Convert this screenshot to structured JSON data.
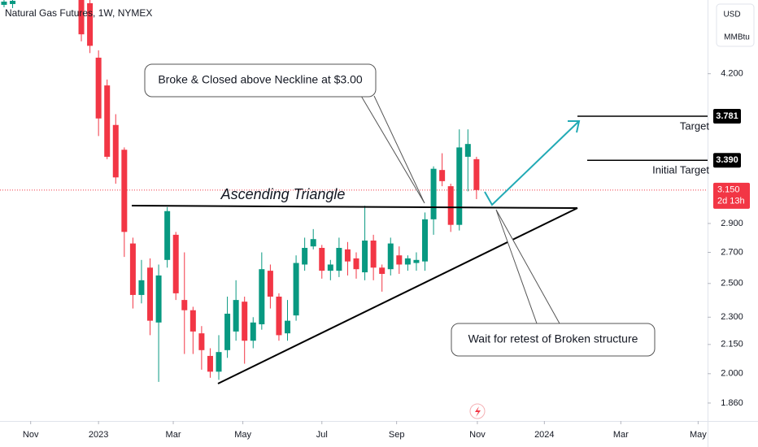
{
  "title": "Natural Gas Futures, 1W, NYMEX",
  "currency": "USD",
  "unit": "MMBtu",
  "annotations": {
    "neckline": "Broke & Closed above Neckline at $3.00",
    "pattern": "Ascending Triangle",
    "retest": "Wait for retest of Broken structure"
  },
  "chart_data": {
    "type": "candlestick",
    "log_scale": true,
    "up_color": "#089981",
    "down_color": "#f23645",
    "x": [
      0,
      1,
      9,
      10,
      11,
      12,
      13,
      14,
      15,
      16,
      17,
      18,
      19,
      20,
      21,
      22,
      23,
      24,
      25,
      26,
      27,
      28,
      29,
      30,
      31,
      32,
      33,
      34,
      35,
      36,
      37,
      38,
      39,
      40,
      41,
      42,
      43,
      44,
      45,
      46,
      47,
      48,
      49,
      50,
      51,
      52,
      53,
      54,
      55
    ],
    "open": [
      4.98,
      4.99,
      5.3,
      5.0,
      4.37,
      4.08,
      3.7,
      3.48,
      2.76,
      2.43,
      2.6,
      2.27,
      2.65,
      2.82,
      2.4,
      2.34,
      2.21,
      2.09,
      2.01,
      2.12,
      2.22,
      2.39,
      2.17,
      2.26,
      2.58,
      2.42,
      2.21,
      2.31,
      2.62,
      2.74,
      2.73,
      2.58,
      2.58,
      2.72,
      2.66,
      2.57,
      2.78,
      2.6,
      2.59,
      2.68,
      2.62,
      2.63,
      2.64,
      2.93,
      3.31,
      3.18,
      2.89,
      3.42,
      3.4
    ],
    "high": [
      5.04,
      5.06,
      5.4,
      5.1,
      4.45,
      4.14,
      3.8,
      3.5,
      2.8,
      2.65,
      2.66,
      2.62,
      3.02,
      2.84,
      2.7,
      2.36,
      2.25,
      2.13,
      2.2,
      2.42,
      2.52,
      2.42,
      2.3,
      2.7,
      2.62,
      2.44,
      2.4,
      2.68,
      2.8,
      2.86,
      2.75,
      2.65,
      2.8,
      2.77,
      2.7,
      3.03,
      2.82,
      2.62,
      2.8,
      2.74,
      2.68,
      2.7,
      2.98,
      3.34,
      3.45,
      3.2,
      3.66,
      3.66,
      3.42
    ],
    "low": [
      4.95,
      4.94,
      4.55,
      4.42,
      3.6,
      3.4,
      3.2,
      2.67,
      2.35,
      2.38,
      2.2,
      1.96,
      2.6,
      2.4,
      2.1,
      2.1,
      2.02,
      1.98,
      1.97,
      2.08,
      2.17,
      2.05,
      2.13,
      2.23,
      2.35,
      2.17,
      2.17,
      2.28,
      2.58,
      2.72,
      2.53,
      2.52,
      2.54,
      2.55,
      2.53,
      2.52,
      2.52,
      2.45,
      2.55,
      2.56,
      2.58,
      2.58,
      2.58,
      2.82,
      3.18,
      2.84,
      2.85,
      3.14,
      3.08
    ],
    "close": [
      5.02,
      5.03,
      4.63,
      4.5,
      3.76,
      3.42,
      3.25,
      2.84,
      2.43,
      2.52,
      2.28,
      2.55,
      2.99,
      2.44,
      2.34,
      2.22,
      2.12,
      2.01,
      2.11,
      2.32,
      2.4,
      2.17,
      2.27,
      2.59,
      2.42,
      2.2,
      2.28,
      2.63,
      2.73,
      2.79,
      2.58,
      2.62,
      2.73,
      2.64,
      2.59,
      2.78,
      2.6,
      2.56,
      2.76,
      2.62,
      2.66,
      2.65,
      2.93,
      3.32,
      3.22,
      2.89,
      3.5,
      3.53,
      3.15
    ],
    "xlim": [
      -0.47,
      81.9
    ],
    "ylim": [
      1.79,
      5.04
    ],
    "xticks": [
      {
        "value": 3.1,
        "label": "Nov"
      },
      {
        "value": 11.0,
        "label": "2023"
      },
      {
        "value": 19.7,
        "label": "Mar"
      },
      {
        "value": 27.8,
        "label": "May"
      },
      {
        "value": 37.0,
        "label": "Jul"
      },
      {
        "value": 45.7,
        "label": "Sep"
      },
      {
        "value": 55.1,
        "label": "Nov"
      },
      {
        "value": 62.9,
        "label": "2024"
      },
      {
        "value": 71.8,
        "label": "Mar"
      },
      {
        "value": 80.8,
        "label": "May"
      }
    ],
    "yticks": [
      {
        "value": 4.2,
        "label": "4.200"
      },
      {
        "value": 2.9,
        "label": "2.900"
      },
      {
        "value": 2.7,
        "label": "2.700"
      },
      {
        "value": 2.5,
        "label": "2.500"
      },
      {
        "value": 2.3,
        "label": "2.300"
      },
      {
        "value": 2.15,
        "label": "2.150"
      },
      {
        "value": 2.0,
        "label": "2.000"
      },
      {
        "value": 1.86,
        "label": "1.860"
      }
    ],
    "levels": [
      {
        "name": "Target",
        "value": 3.781,
        "label": "3.781"
      },
      {
        "name": "Initial Target",
        "value": 3.39,
        "label": "3.390"
      }
    ],
    "last_price": {
      "value": 3.15,
      "label": "3.150",
      "countdown": "2d 13h",
      "color": "#f23645"
    }
  }
}
